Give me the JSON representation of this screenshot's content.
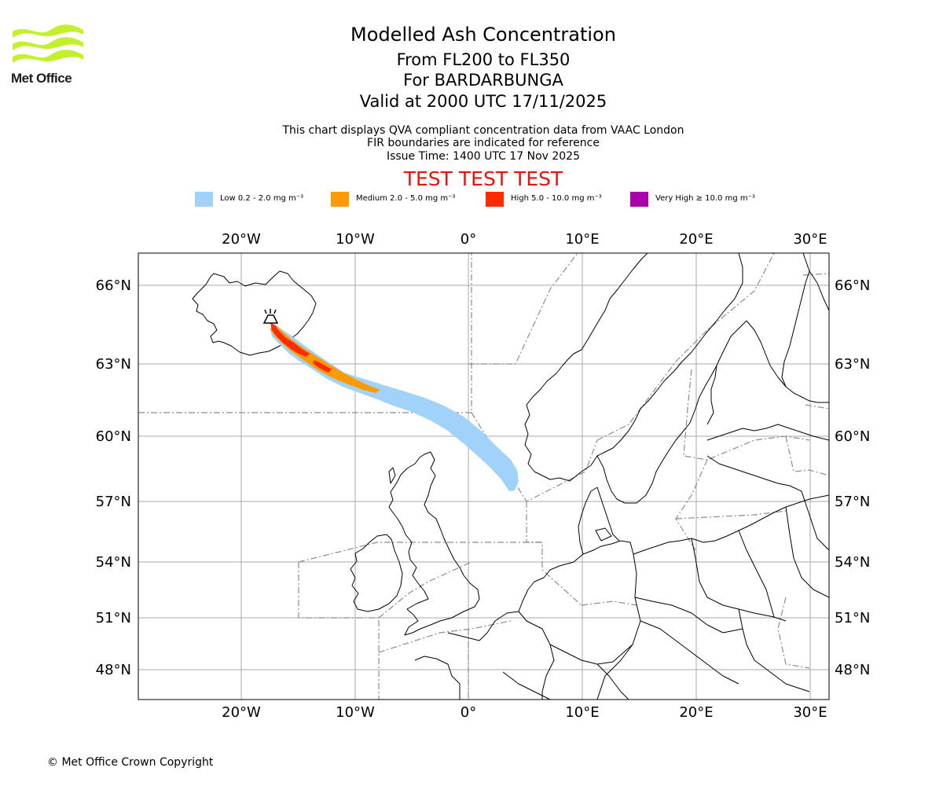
{
  "logo": {
    "text": "Met Office",
    "icon": "met-office-wave-logo",
    "color": "#c3f02e"
  },
  "header": {
    "title": "Modelled Ash Concentration",
    "subtitle_levels": "From FL200 to FL350",
    "subtitle_volcano": "For BARDARBUNGA",
    "subtitle_valid": "Valid at 2000 UTC 17/11/2025",
    "note_qva": "This chart displays QVA compliant concentration data from VAAC London",
    "note_fir": "FIR boundaries are indicated for reference",
    "note_issue": "Issue Time: 1400 UTC 17 Nov 2025",
    "test_banner": "TEST TEST TEST"
  },
  "legend": [
    {
      "label": "Low 0.2 - 2.0 mg m⁻³",
      "color": "#a0d2fa"
    },
    {
      "label": "Medium 2.0 - 5.0 mg m⁻³",
      "color": "#ff9b00"
    },
    {
      "label": "High 5.0 - 10.0 mg m⁻³",
      "color": "#ff2b00"
    },
    {
      "label": "Very High ≥ 10.0 mg m⁻³",
      "color": "#aa00aa"
    }
  ],
  "map": {
    "lon_labels": [
      "20°W",
      "10°W",
      "0°",
      "10°E",
      "20°E",
      "30°E"
    ],
    "lat_labels": [
      "66°N",
      "63°N",
      "60°N",
      "57°N",
      "54°N",
      "51°N",
      "48°N"
    ],
    "volcano_symbol": "volcano-icon"
  },
  "footer": {
    "copyright": "© Met Office Crown Copyright"
  }
}
